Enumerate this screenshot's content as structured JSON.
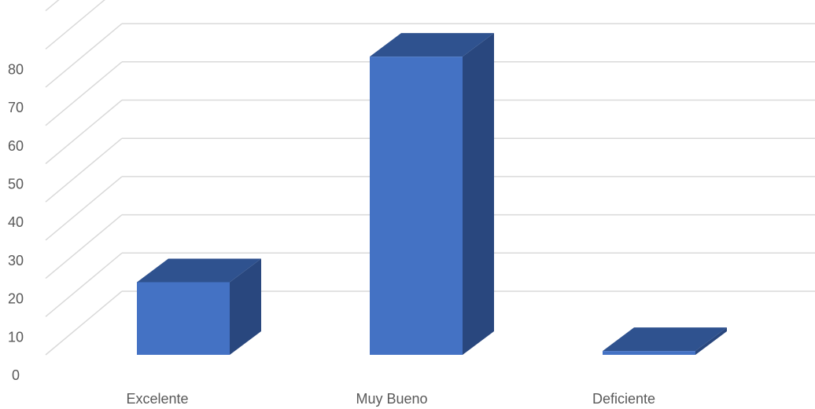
{
  "chart_data": {
    "type": "bar",
    "style": "3d-column",
    "categories": [
      "Excelente",
      "Muy Bueno",
      "Deficiente"
    ],
    "values": [
      19,
      78,
      1
    ],
    "ylim": [
      0,
      90
    ],
    "y_ticks": [
      "0",
      "10",
      "20",
      "30",
      "40",
      "50",
      "60",
      "70",
      "80"
    ],
    "grid": true,
    "legend": "none",
    "colors": {
      "front": "#4472C4",
      "top": "#2F528F",
      "side": "#29477E",
      "grid": "#D9D9D9",
      "text": "#595959"
    }
  }
}
